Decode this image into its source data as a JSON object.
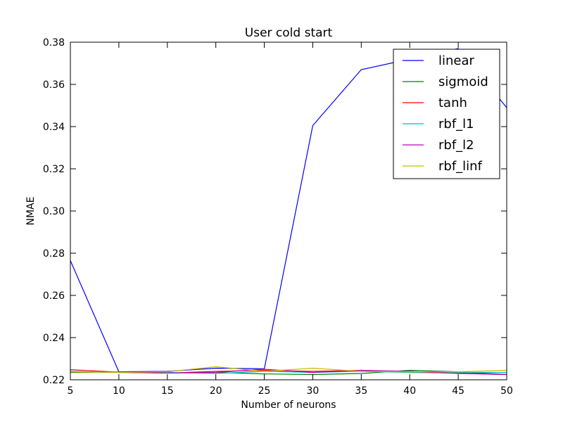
{
  "chart_data": {
    "type": "line",
    "title": "User cold start",
    "xlabel": "Number of neurons",
    "ylabel": "NMAE",
    "xlim": [
      5,
      50
    ],
    "ylim": [
      0.22,
      0.38
    ],
    "x": [
      5,
      10,
      15,
      20,
      25,
      30,
      35,
      40,
      45,
      50
    ],
    "xticks": [
      "5",
      "10",
      "15",
      "20",
      "25",
      "30",
      "35",
      "40",
      "45",
      "50"
    ],
    "yticks": [
      "0.22",
      "0.24",
      "0.26",
      "0.28",
      "0.30",
      "0.32",
      "0.34",
      "0.36",
      "0.38"
    ],
    "grid": false,
    "legend_position": "top-right",
    "series": [
      {
        "name": "linear",
        "color": "#0000ff",
        "values": [
          0.2765,
          0.2238,
          0.224,
          0.2255,
          0.2252,
          0.3405,
          0.367,
          0.372,
          0.377,
          0.349
        ]
      },
      {
        "name": "sigmoid",
        "color": "#008000",
        "values": [
          0.2235,
          0.2237,
          0.2232,
          0.2235,
          0.2228,
          0.2225,
          0.223,
          0.2245,
          0.2238,
          0.2225
        ]
      },
      {
        "name": "tanh",
        "color": "#ff0000",
        "values": [
          0.2248,
          0.2236,
          0.2232,
          0.224,
          0.2245,
          0.224,
          0.2245,
          0.2235,
          0.2232,
          0.2225
        ]
      },
      {
        "name": "rbf_l1",
        "color": "#00bfbf",
        "values": [
          0.224,
          0.2235,
          0.2235,
          0.223,
          0.224,
          0.2235,
          0.224,
          0.2235,
          0.2235,
          0.2235
        ]
      },
      {
        "name": "rbf_l2",
        "color": "#bf00bf",
        "values": [
          0.2238,
          0.2235,
          0.2232,
          0.2235,
          0.225,
          0.2235,
          0.2245,
          0.224,
          0.223,
          0.2225
        ]
      },
      {
        "name": "rbf_linf",
        "color": "#bfbf00",
        "values": [
          0.2238,
          0.2235,
          0.2238,
          0.2262,
          0.224,
          0.2255,
          0.224,
          0.2238,
          0.2238,
          0.2245
        ]
      }
    ]
  }
}
